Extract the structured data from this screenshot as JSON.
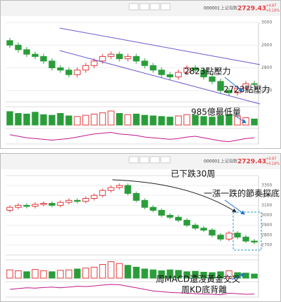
{
  "header": {
    "code": "000001",
    "name": "上证指数",
    "price": "2729.43",
    "change": "+4.87",
    "change_pct": "+0.18%"
  },
  "chart_data": [
    {
      "type": "candlestick",
      "up_color": "#e4393c",
      "down_color": "#2a9d3a",
      "open": [
        2920,
        2900,
        2880,
        2860,
        2850,
        2830,
        2800,
        2790,
        2770,
        2790,
        2810,
        2830,
        2850,
        2860,
        2840,
        2850,
        2830,
        2810,
        2790,
        2770,
        2760,
        2780,
        2800,
        2790,
        2760,
        2740,
        2700,
        2690,
        2710,
        2730
      ],
      "high": [
        2932,
        2912,
        2892,
        2872,
        2862,
        2842,
        2812,
        2802,
        2802,
        2822,
        2842,
        2862,
        2872,
        2872,
        2862,
        2862,
        2842,
        2822,
        2802,
        2782,
        2792,
        2812,
        2812,
        2802,
        2772,
        2752,
        2712,
        2722,
        2742,
        2742
      ],
      "low": [
        2888,
        2868,
        2848,
        2838,
        2818,
        2788,
        2778,
        2758,
        2758,
        2778,
        2798,
        2818,
        2838,
        2828,
        2828,
        2818,
        2798,
        2778,
        2758,
        2748,
        2748,
        2768,
        2778,
        2748,
        2728,
        2688,
        2678,
        2678,
        2698,
        2717
      ],
      "close": [
        2900,
        2880,
        2860,
        2850,
        2830,
        2800,
        2790,
        2770,
        2790,
        2810,
        2830,
        2850,
        2860,
        2840,
        2850,
        2830,
        2810,
        2790,
        2770,
        2760,
        2780,
        2800,
        2790,
        2760,
        2740,
        2700,
        2690,
        2710,
        2730,
        2729.43
      ],
      "ylim": [
        2650,
        3000
      ],
      "yticks": [
        2700,
        2800,
        2900,
        3000
      ],
      "volume": [
        2200,
        1900,
        1800,
        2100,
        1700,
        1600,
        1900,
        1500,
        1400,
        1600,
        1800,
        2000,
        2300,
        1900,
        1700,
        1800,
        1600,
        1500,
        1400,
        1300,
        1500,
        1700,
        1600,
        1400,
        1300,
        1500,
        1700,
        1400,
        1200,
        985
      ],
      "volume_ylim": [
        0,
        3000
      ],
      "kd": [
        60,
        50,
        40,
        35,
        30,
        25,
        30,
        35,
        45,
        55,
        65,
        70,
        75,
        65,
        60,
        55,
        45,
        40,
        35,
        30,
        35,
        45,
        50,
        40,
        30,
        20,
        15,
        25,
        35,
        40
      ],
      "kd_ylim": [
        0,
        100
      ],
      "annotations": [
        "2823點壓力",
        "2723點壓力",
        "985億最低量"
      ]
    },
    {
      "type": "candlestick",
      "up_color": "#e4393c",
      "down_color": "#2a9d3a",
      "open": [
        3050,
        3080,
        3100,
        3090,
        3110,
        3120,
        3100,
        3130,
        3150,
        3140,
        3170,
        3200,
        3250,
        3280,
        3300,
        3220,
        3150,
        3080,
        3050,
        3000,
        2980,
        2950,
        2900,
        2870,
        2850,
        2800,
        2760,
        2820,
        2780,
        2740
      ],
      "high": [
        3100,
        3120,
        3120,
        3130,
        3140,
        3140,
        3150,
        3170,
        3170,
        3190,
        3220,
        3270,
        3300,
        3320,
        3320,
        3240,
        3170,
        3100,
        3070,
        3020,
        3000,
        2970,
        2920,
        2890,
        2870,
        2820,
        2840,
        2840,
        2800,
        2760
      ],
      "low": [
        3030,
        3060,
        3070,
        3070,
        3090,
        3080,
        3080,
        3110,
        3120,
        3120,
        3150,
        3180,
        3230,
        3260,
        3200,
        3130,
        3060,
        3030,
        2980,
        2960,
        2930,
        2880,
        2850,
        2830,
        2780,
        2740,
        2740,
        2760,
        2720,
        2709
      ],
      "close": [
        3080,
        3100,
        3090,
        3110,
        3120,
        3100,
        3130,
        3150,
        3140,
        3170,
        3200,
        3250,
        3280,
        3300,
        3220,
        3150,
        3080,
        3050,
        3000,
        2980,
        2950,
        2900,
        2870,
        2850,
        2800,
        2760,
        2820,
        2780,
        2740,
        2729.43
      ],
      "ylim": [
        2600,
        3400
      ],
      "yticks": [
        2700,
        2800,
        2900,
        3000,
        3100,
        3200,
        3300
      ],
      "volume": [
        9000,
        8000,
        7000,
        9500,
        8000,
        7000,
        8500,
        9000,
        10000,
        11000,
        12000,
        15000,
        18000,
        16000,
        14000,
        12000,
        10000,
        9000,
        8000,
        9000,
        8500,
        7000,
        7500,
        6500,
        6000,
        7000,
        8000,
        6000,
        5500,
        4500
      ],
      "volume_ylim": [
        0,
        20000
      ],
      "kd": [
        50,
        55,
        60,
        58,
        62,
        65,
        60,
        65,
        70,
        68,
        72,
        78,
        82,
        80,
        70,
        60,
        50,
        40,
        35,
        30,
        28,
        25,
        22,
        20,
        18,
        15,
        25,
        22,
        18,
        20
      ],
      "kd_ylim": [
        0,
        100
      ],
      "annotations": [
        "已下跌30周",
        "一漲一跌的節奏探底",
        "周MACD還沒黃金交叉",
        "周KD底背離"
      ]
    }
  ]
}
